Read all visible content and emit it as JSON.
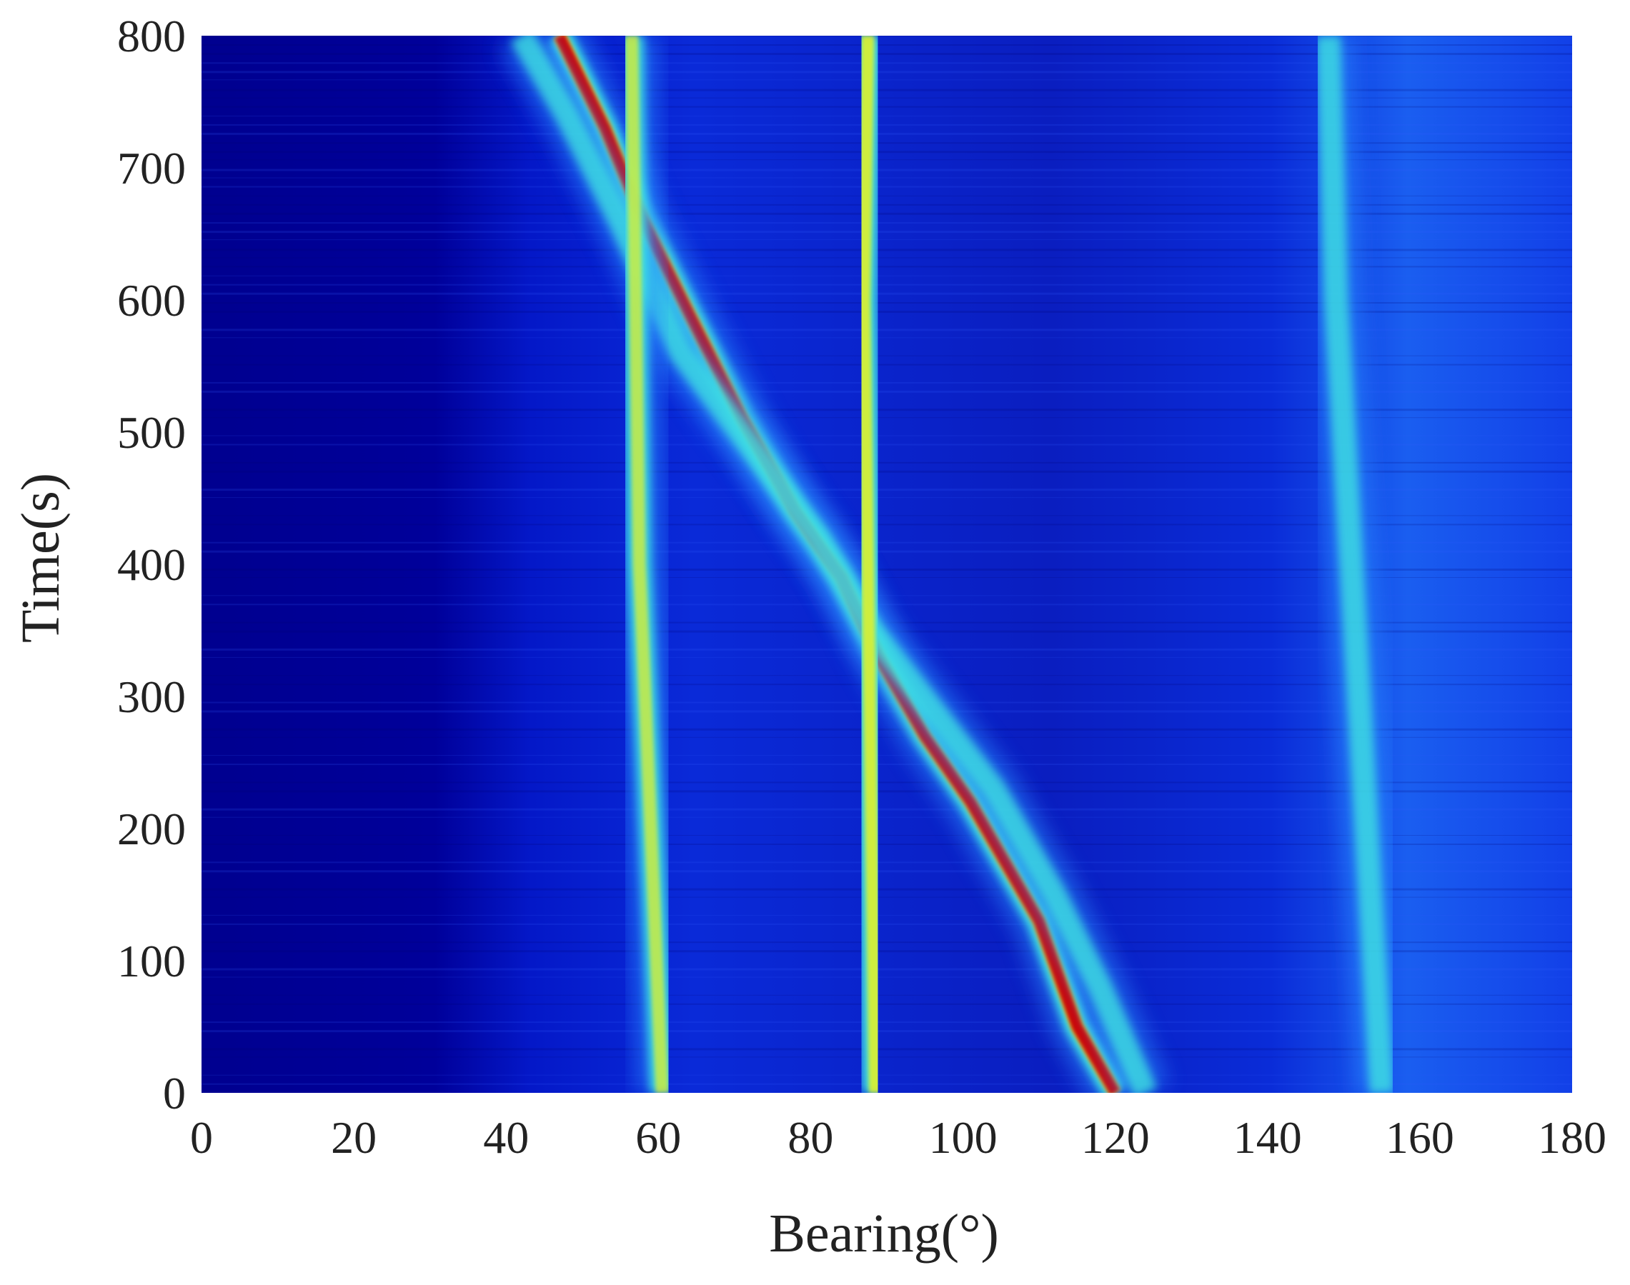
{
  "chart_data": {
    "type": "heatmap",
    "title": "",
    "xlabel": "Bearing(°)",
    "ylabel": "Time(s)",
    "xlim": [
      0,
      180
    ],
    "ylim": [
      0,
      800
    ],
    "xticks": [
      0,
      20,
      40,
      60,
      80,
      100,
      120,
      140,
      160,
      180
    ],
    "yticks": [
      0,
      100,
      200,
      300,
      400,
      500,
      600,
      700,
      800
    ],
    "xtick_labels": [
      "0",
      "20",
      "40",
      "60",
      "80",
      "100",
      "120",
      "140",
      "160",
      "180"
    ],
    "ytick_labels": [
      "0",
      "100",
      "200",
      "300",
      "400",
      "500",
      "600",
      "700",
      "800"
    ],
    "colormap": "jet",
    "colors": {
      "background_low": "#00008f",
      "background_mid": "#1030e0",
      "cyan": "#40e8e0",
      "yellow": "#e8f020",
      "red": "#d00000"
    },
    "grid": false,
    "legend": "none",
    "tracks": [
      {
        "shape": "curve",
        "intensity": 1.0,
        "points": [
          [
            120,
            0
          ],
          [
            115,
            50
          ],
          [
            110,
            130
          ],
          [
            106,
            170
          ],
          [
            101,
            220
          ],
          [
            95,
            270
          ],
          [
            89,
            330
          ],
          [
            84,
            390
          ],
          [
            78,
            440
          ],
          [
            71,
            510
          ],
          [
            64,
            590
          ],
          [
            58,
            660
          ],
          [
            53,
            730
          ],
          [
            47,
            800
          ]
        ]
      },
      {
        "shape": "curve",
        "intensity": 0.5,
        "points": [
          [
            124,
            0
          ],
          [
            118,
            80
          ],
          [
            112,
            150
          ],
          [
            104,
            230
          ],
          [
            96,
            290
          ],
          [
            88,
            350
          ],
          [
            81,
            420
          ],
          [
            72,
            490
          ],
          [
            63,
            560
          ],
          [
            55,
            660
          ],
          [
            48,
            740
          ],
          [
            42,
            800
          ]
        ]
      },
      {
        "shape": "vertical",
        "intensity": 0.7,
        "points": [
          [
            60.5,
            0
          ],
          [
            59,
            200
          ],
          [
            57.5,
            400
          ],
          [
            57,
            600
          ],
          [
            56.5,
            800
          ]
        ]
      },
      {
        "shape": "vertical",
        "intensity": 0.85,
        "points": [
          [
            88.5,
            0
          ],
          [
            88,
            200
          ],
          [
            87.5,
            400
          ],
          [
            87,
            600
          ],
          [
            87.5,
            800
          ]
        ]
      },
      {
        "shape": "vertical",
        "intensity": 0.6,
        "points": [
          [
            146,
            0
          ],
          [
            146,
            800
          ]
        ]
      },
      {
        "shape": "vertical",
        "intensity": 0.5,
        "points": [
          [
            155,
            0
          ],
          [
            153,
            200
          ],
          [
            151,
            400
          ],
          [
            149,
            600
          ],
          [
            148,
            800
          ]
        ]
      }
    ]
  }
}
